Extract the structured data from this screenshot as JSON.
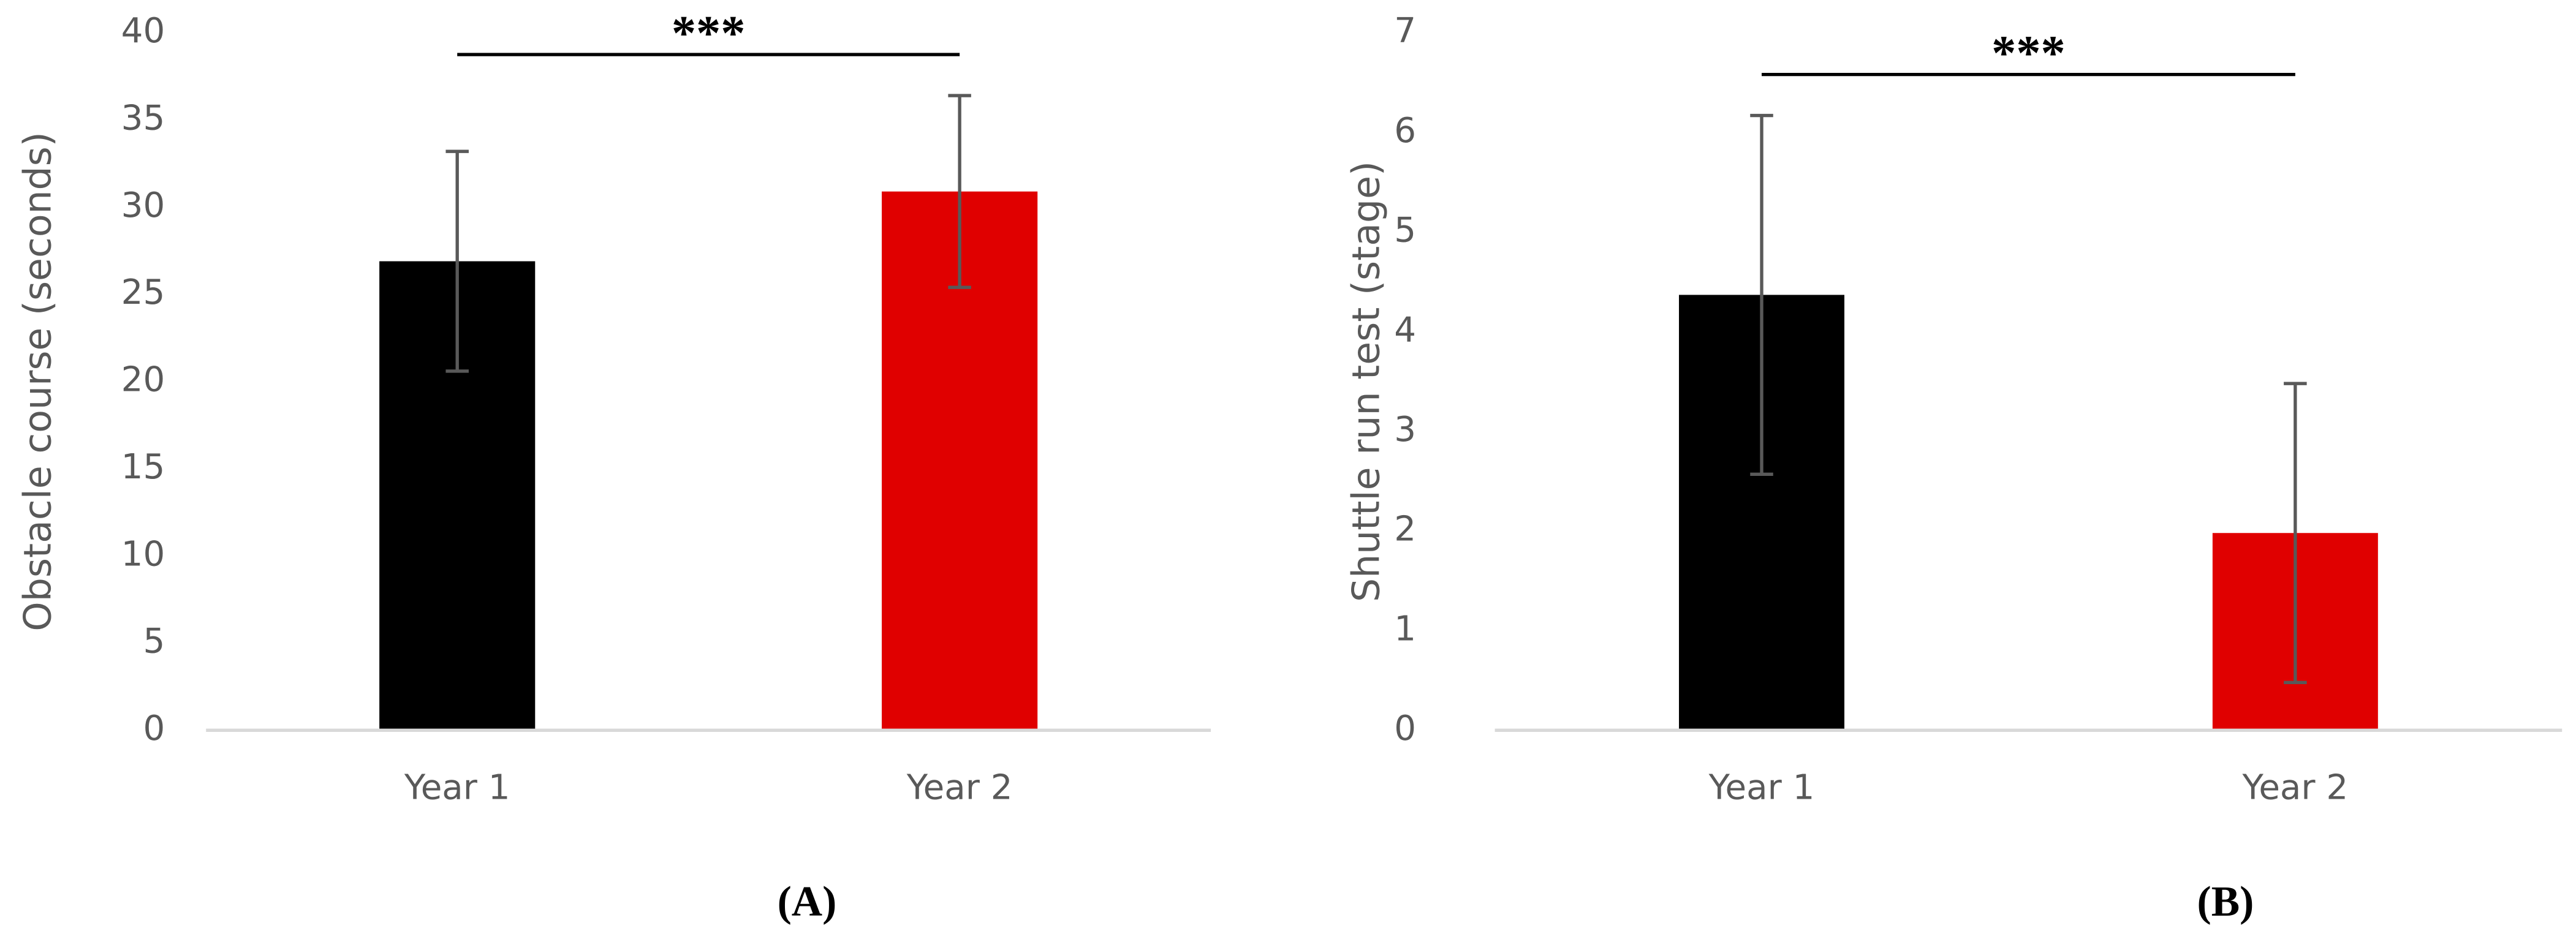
{
  "chart_data": [
    {
      "type": "bar",
      "panel_label": "(A)",
      "ylabel": "Obstacle course (seconds)",
      "categories": [
        "Year 1",
        "Year 2"
      ],
      "values": [
        26.9,
        30.9
      ],
      "errors": [
        6.3,
        5.5
      ],
      "colors": [
        "#000000",
        "#e00000"
      ],
      "ylim": [
        0,
        40
      ],
      "yticks": [
        0,
        5,
        10,
        15,
        20,
        25,
        30,
        35,
        40
      ],
      "annotation": "***"
    },
    {
      "type": "bar",
      "panel_label": "(B)",
      "ylabel": "Shuttle run test (stage)",
      "categories": [
        "Year 1",
        "Year 2"
      ],
      "values": [
        4.37,
        1.98
      ],
      "errors": [
        1.8,
        1.5
      ],
      "colors": [
        "#000000",
        "#e00000"
      ],
      "ylim": [
        0,
        7
      ],
      "yticks": [
        0,
        1,
        2,
        3,
        4,
        5,
        6,
        7
      ],
      "annotation": "***"
    }
  ]
}
